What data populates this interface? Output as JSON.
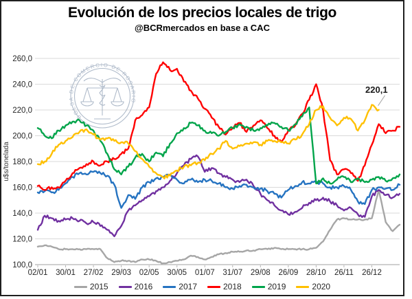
{
  "chart": {
    "title": "Evolución de los precios locales de trigo",
    "subtitle": "@BCRmercados en base a CAC",
    "y_axis": {
      "label": "u$s/tonelada",
      "tick_labels": [
        "260,0",
        "240,0",
        "220,0",
        "200,0",
        "180,0",
        "160,0",
        "140,0",
        "120,0",
        "100,0"
      ],
      "tick_values": [
        260,
        240,
        220,
        200,
        180,
        160,
        140,
        120,
        100
      ]
    },
    "x_axis": {
      "tick_labels": [
        "02/01",
        "30/01",
        "27/02",
        "29/03",
        "02/05",
        "30/05",
        "01/07",
        "31/07",
        "29/08",
        "26/09",
        "28/10",
        "26/11",
        "26/12"
      ]
    },
    "watermark": {
      "text": "BOLSA DE COMERCIO DE ROSARIO"
    },
    "annotation": {
      "text": "220,1",
      "value": 220.1,
      "series": "2020"
    }
  },
  "chart_data": {
    "type": "line",
    "title": "Evolución de los precios locales de trigo",
    "subtitle": "@BCRmercados en base a CAC",
    "xlabel": "",
    "ylabel": "u$s/tonelada",
    "ylim": [
      100,
      260
    ],
    "grid": true,
    "legend_position": "bottom",
    "x_tick_labels": [
      "02/01",
      "30/01",
      "27/02",
      "29/03",
      "02/05",
      "30/05",
      "01/07",
      "31/07",
      "29/08",
      "26/09",
      "28/10",
      "26/11",
      "26/12"
    ],
    "x_description": "weekly points across one calendar year, index 0-52",
    "series": [
      {
        "name": "2015",
        "color": "#A6A6A6",
        "values": [
          114,
          115,
          114,
          112,
          112,
          112,
          112,
          112,
          112,
          112,
          105,
          102,
          103,
          103,
          102,
          104,
          104,
          103,
          101,
          102,
          103,
          104,
          107,
          106,
          104,
          106,
          108,
          109,
          110,
          110,
          111,
          111,
          112,
          112,
          113,
          112,
          112,
          112,
          112,
          112,
          113,
          118,
          127,
          135,
          136,
          135,
          135,
          135,
          136,
          158,
          133,
          126,
          131
        ]
      },
      {
        "name": "2016",
        "color": "#7030A0",
        "values": [
          127,
          138,
          136,
          134,
          135,
          136,
          134,
          132,
          133,
          130,
          127,
          122,
          130,
          142,
          146,
          150,
          153,
          157,
          160,
          165,
          171,
          177,
          182,
          184,
          172,
          175,
          171,
          168,
          166,
          164,
          166,
          161,
          155,
          150,
          146,
          142,
          139,
          141,
          144,
          148,
          150,
          152,
          149,
          146,
          142,
          144,
          139,
          137,
          153,
          158,
          154,
          152,
          155
        ]
      },
      {
        "name": "2017",
        "color": "#2573C1",
        "values": [
          156,
          157,
          156,
          158,
          163,
          168,
          171,
          170,
          172,
          171,
          169,
          162,
          144,
          154,
          151,
          160,
          164,
          167,
          168,
          170,
          166,
          163,
          166,
          164,
          166,
          165,
          163,
          160,
          159,
          161,
          162,
          160,
          159,
          157,
          155,
          152,
          158,
          161,
          164,
          163,
          164,
          163,
          160,
          160,
          161,
          158,
          149,
          147,
          158,
          160,
          159,
          158,
          162
        ]
      },
      {
        "name": "2018",
        "color": "#FF0000",
        "values": [
          161,
          158,
          160,
          160,
          165,
          171,
          175,
          178,
          180,
          177,
          180,
          182,
          186,
          190,
          212,
          216,
          222,
          248,
          257,
          251,
          252,
          242,
          235,
          229,
          221,
          214,
          207,
          201,
          206,
          210,
          203,
          208,
          212,
          206,
          200,
          195,
          204,
          208,
          217,
          228,
          240,
          220,
          181,
          170,
          174,
          171,
          165,
          177,
          193,
          209,
          202,
          204,
          207
        ]
      },
      {
        "name": "2019",
        "color": "#00A44A",
        "values": [
          206,
          200,
          198,
          204,
          208,
          211,
          212,
          208,
          204,
          196,
          186,
          174,
          170,
          176,
          183,
          186,
          180,
          187,
          184,
          194,
          202,
          206,
          210,
          208,
          204,
          202,
          200,
          203,
          206,
          209,
          207,
          204,
          206,
          208,
          210,
          207,
          204,
          209,
          215,
          222,
          163,
          167,
          163,
          166,
          168,
          164,
          167,
          164,
          166,
          168,
          165,
          167,
          170
        ]
      },
      {
        "name": "2020",
        "color": "#FFC000",
        "values": [
          178,
          180,
          186,
          193,
          196,
          199,
          203,
          205,
          201,
          197,
          198,
          196,
          195,
          194,
          188,
          182,
          176,
          171,
          168,
          169,
          173,
          176,
          177,
          179,
          181,
          186,
          190,
          196,
          190,
          192,
          194,
          195,
          193,
          196,
          196,
          195,
          194,
          197,
          201,
          209,
          220,
          223,
          214,
          208,
          214,
          213,
          204,
          212,
          224,
          220.1
        ]
      }
    ]
  },
  "colors": {
    "grid": "#D9D9D9",
    "axis": "#B3B3B3",
    "tick_text": "#262626",
    "watermark": "#94A3B8",
    "annotation_leader": "#A6A6A6"
  }
}
